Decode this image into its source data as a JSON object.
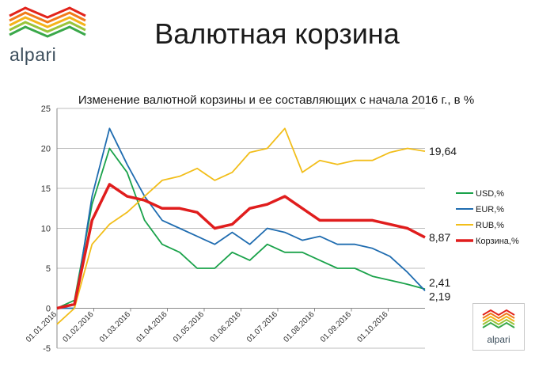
{
  "brand": {
    "name": "alpari"
  },
  "page_title": "Валютная корзина",
  "colors": {
    "usd": "#1aa24a",
    "eur": "#1f6cb0",
    "rub": "#f2be1a",
    "basket": "#e01d1d"
  },
  "chart_data": {
    "type": "line",
    "title": "Изменение валютной корзины и ее составляющих с начала 2016 г., в %",
    "xlabel": "",
    "ylabel": "",
    "ylim": [
      -5,
      25
    ],
    "yticks": [
      -5,
      0,
      5,
      10,
      15,
      20,
      25
    ],
    "x_tick_labels": [
      "01.01.2016",
      "01.02.2016",
      "01.03.2016",
      "01.04.2016",
      "01.05.2016",
      "01.06.2016",
      "01.07.2016",
      "01.08.2016",
      "01.09.2016",
      "01.10.2016"
    ],
    "grid": "horizontal",
    "legend_position": "right",
    "x": [
      "01.01.2016",
      "15.01.2016",
      "01.02.2016",
      "15.02.2016",
      "01.03.2016",
      "15.03.2016",
      "01.04.2016",
      "15.04.2016",
      "01.05.2016",
      "15.05.2016",
      "01.06.2016",
      "15.06.2016",
      "01.07.2016",
      "15.07.2016",
      "01.08.2016",
      "15.08.2016",
      "01.09.2016",
      "15.09.2016",
      "01.10.2016",
      "15.10.2016",
      "01.11.2016",
      "10.11.2016"
    ],
    "series": [
      {
        "name": "USD,%",
        "color_key": "usd",
        "end_label": "2,41",
        "values": [
          0,
          1,
          13,
          20,
          17,
          11,
          8,
          7,
          5,
          5,
          7,
          6,
          8,
          7,
          7,
          6,
          5,
          5,
          4,
          3.5,
          3,
          2.41
        ]
      },
      {
        "name": "EUR,%",
        "color_key": "eur",
        "end_label": "2,19",
        "values": [
          0,
          0,
          14,
          22.5,
          18,
          14,
          11,
          10,
          9,
          8,
          9.5,
          8,
          10,
          9.5,
          8.5,
          9,
          8,
          8,
          7.5,
          6.5,
          4.5,
          2.19
        ]
      },
      {
        "name": "RUB,%",
        "color_key": "rub",
        "end_label": "19,64",
        "values": [
          -2,
          0,
          8,
          10.5,
          12,
          14,
          16,
          16.5,
          17.5,
          16,
          17,
          19.5,
          20,
          22.5,
          17,
          18.5,
          18,
          18.5,
          18.5,
          19.5,
          20,
          19.64
        ]
      },
      {
        "name": "Корзина,%",
        "color_key": "basket",
        "end_label": "8,87",
        "values": [
          0,
          0.5,
          11,
          15.5,
          14,
          13.5,
          12.5,
          12.5,
          12,
          10,
          10.5,
          12.5,
          13,
          14,
          12.5,
          11,
          11,
          11,
          11,
          10.5,
          10,
          8.87
        ]
      }
    ]
  }
}
